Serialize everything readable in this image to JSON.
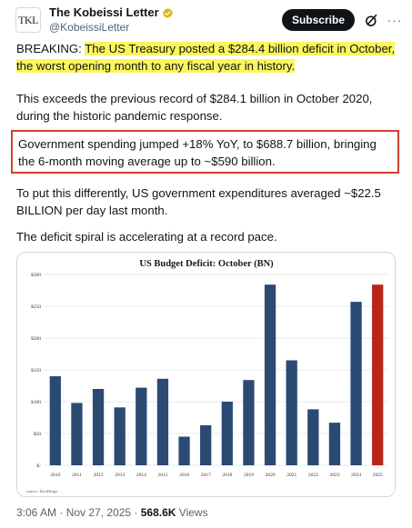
{
  "header": {
    "avatar_text": "TKL",
    "display_name": "The Kobeissi Letter",
    "handle": "@KobeissiLetter",
    "subscribe_label": "Subscribe",
    "more_label": "···"
  },
  "tweet": {
    "p1_prefix": "BREAKING: ",
    "p1_highlight": "The US Treasury posted a $284.4 billion deficit in October, the worst opening month to any fiscal year in history.",
    "p2": "This exceeds the previous record of $284.1 billion in October 2020, during the historic pandemic response.",
    "p3": "Government spending jumped +18% YoY, to $688.7 billion, bringing the 6-month moving average up to ~$590 billion.",
    "p4": "To put this differently, US government expenditures averaged ~$22.5 BILLION per day last month.",
    "p5": "The deficit spiral is accelerating at a record pace."
  },
  "chart_data": {
    "type": "bar",
    "title": "US Budget Deficit: October  (BN)",
    "categories": [
      "2010",
      "2011",
      "2012",
      "2013",
      "2014",
      "2015",
      "2016",
      "2017",
      "2018",
      "2019",
      "2020",
      "2021",
      "2022",
      "2023",
      "2024",
      "2025"
    ],
    "values": [
      140,
      98,
      120,
      91,
      122,
      136,
      45,
      63,
      100,
      134,
      284,
      165,
      88,
      67,
      257,
      284
    ],
    "ylim": [
      0,
      300
    ],
    "yticks": [
      0,
      50,
      100,
      150,
      200,
      250,
      300
    ],
    "ytick_labels": [
      "$-",
      "$50",
      "$100",
      "$150",
      "$200",
      "$250",
      "$300"
    ],
    "source": "source: ZeroHedge",
    "colors": {
      "bar": "#2b4a73",
      "highlight": "#b7261c"
    },
    "highlight_index": 15,
    "grid": true
  },
  "meta": {
    "time": "3:06 AM · Nov 27, 2025 · ",
    "views_count": "568.6K",
    "views_label": " Views"
  },
  "colors": {
    "accent_dark": "#0f1419",
    "muted": "#536471",
    "highlight": "#fbf65d",
    "box_border": "#d0402e",
    "verified": "#e2b719"
  }
}
